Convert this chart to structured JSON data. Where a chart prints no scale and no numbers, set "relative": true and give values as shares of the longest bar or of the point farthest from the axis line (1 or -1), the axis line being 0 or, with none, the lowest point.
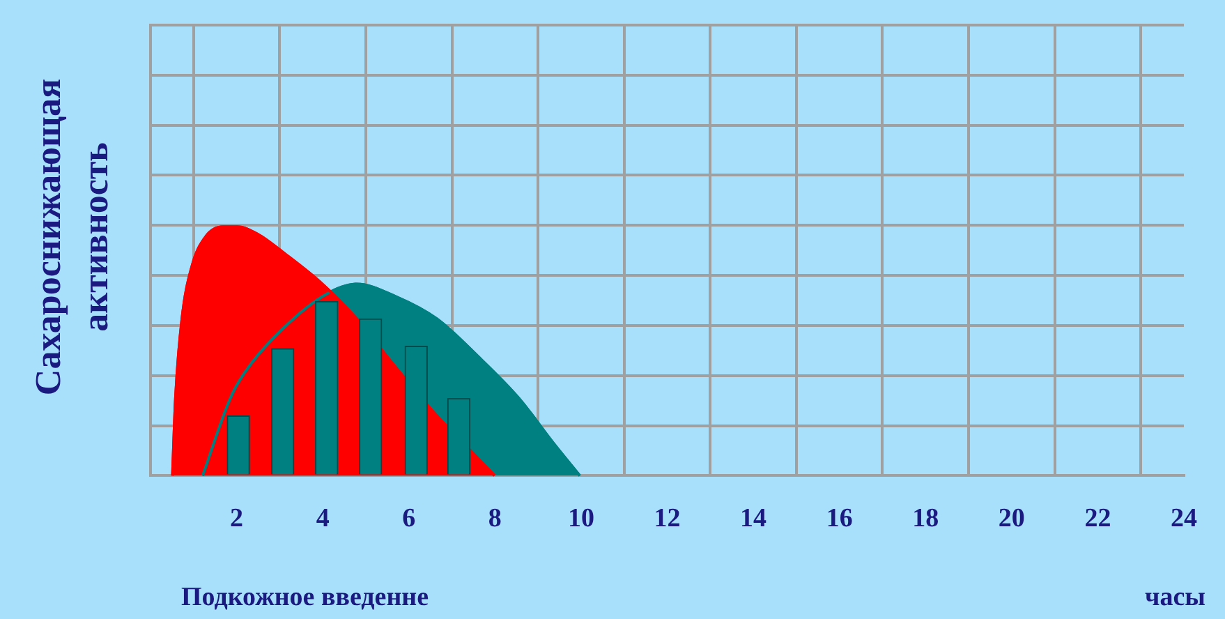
{
  "chart_data": {
    "type": "area",
    "relative": true,
    "xlabel": "Подкожное введенне",
    "ylabel": "Сахароснижающая активность",
    "annotations": [
      "часы"
    ],
    "xlim": [
      0,
      24
    ],
    "xticks": [
      2,
      4,
      6,
      8,
      10,
      12,
      14,
      16,
      18,
      20,
      22,
      24
    ],
    "grid": true,
    "legend": false,
    "series": [
      {
        "color": "#008080",
        "x": [
          1.21,
          1.85,
          2.17,
          3.07,
          4.09,
          4.79,
          5.69,
          6.65,
          7.6,
          8.56,
          9.36,
          9.97
        ],
        "values": [
          0,
          0.31,
          0.41,
          0.59,
          0.73,
          0.77,
          0.72,
          0.63,
          0.48,
          0.31,
          0.13,
          0
        ]
      },
      {
        "color": "#ff0000",
        "x": [
          0.51,
          0.58,
          0.73,
          0.96,
          1.28,
          1.69,
          2.01,
          2.49,
          3.13,
          3.99,
          4.79,
          5.53,
          6.6,
          7.6,
          7.99
        ],
        "values": [
          0,
          0.31,
          0.63,
          0.84,
          0.96,
          1.0,
          1.0,
          0.97,
          0.89,
          0.77,
          0.63,
          0.47,
          0.25,
          0.07,
          0
        ]
      },
      {
        "type": "bar",
        "color": "#008080",
        "x": [
          2.04,
          3.07,
          4.09,
          5.11,
          6.17,
          7.16
        ],
        "values": [
          0.24,
          0.51,
          0.7,
          0.63,
          0.52,
          0.31
        ]
      }
    ]
  }
}
